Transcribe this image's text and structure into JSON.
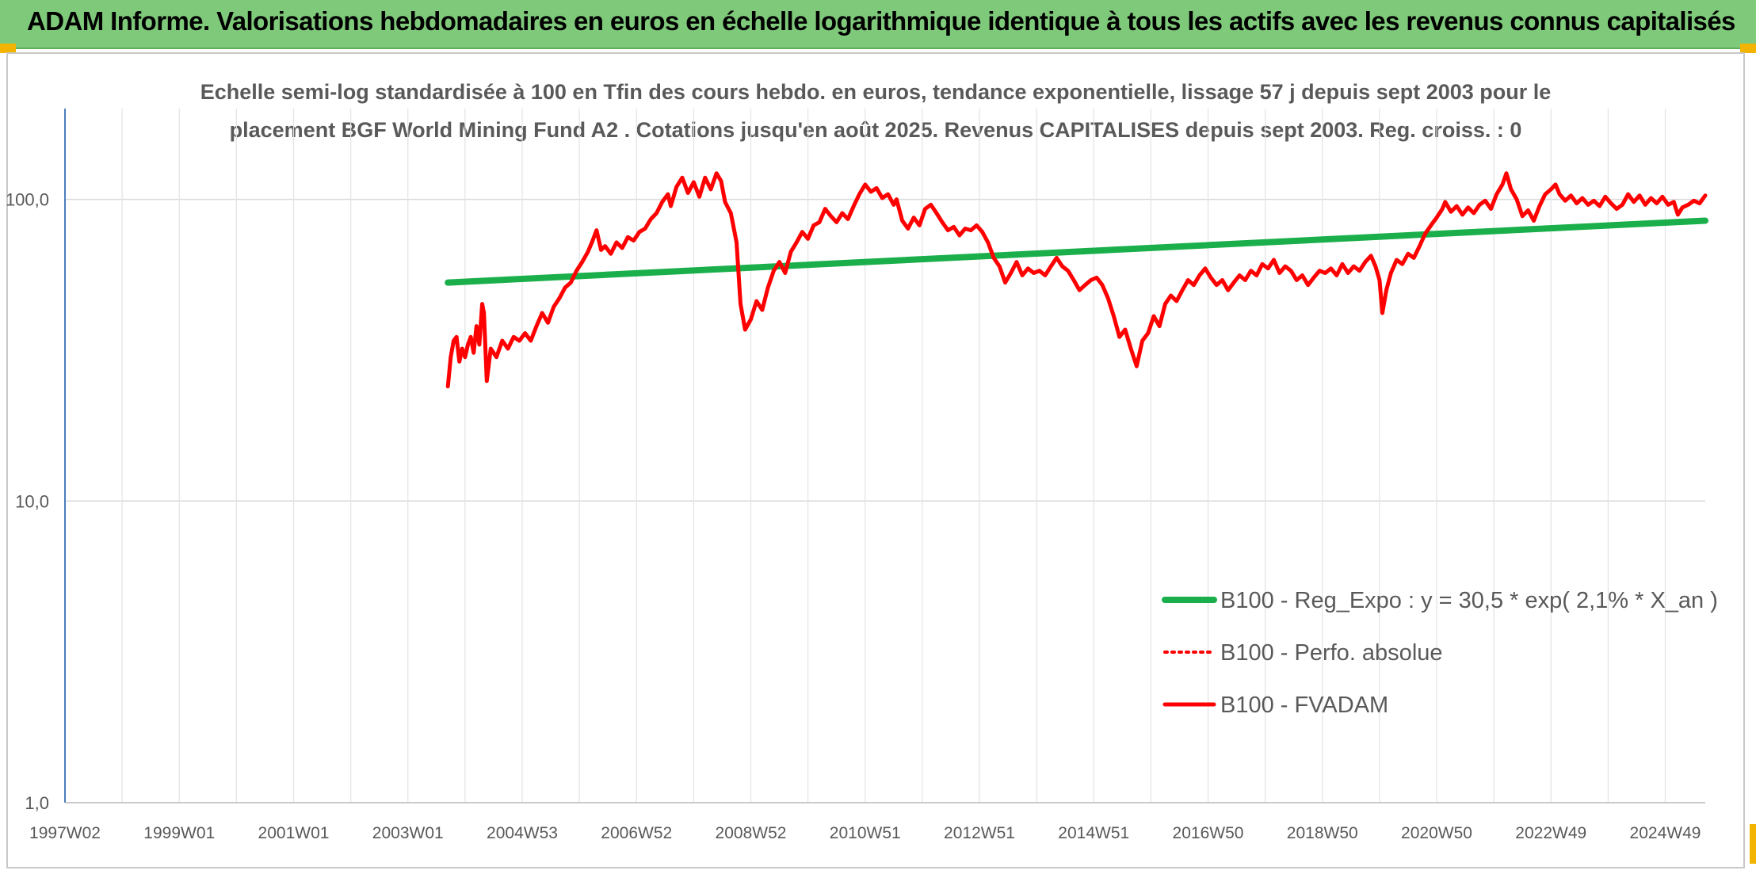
{
  "banner": {
    "title": "ADAM Informe. Valorisations hebdomadaires en euros en échelle logarithmique identique à tous les actifs avec les revenus connus capitalisés"
  },
  "colors": {
    "banner_bg": "#7fc97a",
    "trend_line": "#1aaf4b",
    "perf_line": "#ff0000",
    "adam_line": "#ff0000",
    "corner_accent": "#f2b400"
  },
  "chart_data": {
    "type": "line",
    "title_lines": [
      "Echelle semi-log standardisée à 100 en Tfin des cours hebdo. en euros, tendance exponentielle, lissage 57 j depuis sept 2003 pour le",
      "placement BGF World Mining Fund A2 . Cotations jusqu'en août 2025. Revenus CAPITALISES depuis sept 2003. Reg. croiss. : 0"
    ],
    "y_scale": "log",
    "ylim": [
      1,
      200
    ],
    "yticks": [
      {
        "value": 1,
        "label": "1,0"
      },
      {
        "value": 10,
        "label": "10,0"
      },
      {
        "value": 100,
        "label": "100,0"
      }
    ],
    "xlim": [
      1997.0,
      2025.7
    ],
    "xticks": [
      {
        "value": 1997.0,
        "label": "1997W02"
      },
      {
        "value": 1999.0,
        "label": "1999W01"
      },
      {
        "value": 2001.0,
        "label": "2001W01"
      },
      {
        "value": 2003.0,
        "label": "2003W01"
      },
      {
        "value": 2005.0,
        "label": "2004W53"
      },
      {
        "value": 2007.0,
        "label": "2006W52"
      },
      {
        "value": 2009.0,
        "label": "2008W52"
      },
      {
        "value": 2011.0,
        "label": "2010W51"
      },
      {
        "value": 2013.0,
        "label": "2012W51"
      },
      {
        "value": 2015.0,
        "label": "2014W51"
      },
      {
        "value": 2017.0,
        "label": "2016W50"
      },
      {
        "value": 2019.0,
        "label": "2018W50"
      },
      {
        "value": 2021.0,
        "label": "2020W50"
      },
      {
        "value": 2023.0,
        "label": "2022W49"
      },
      {
        "value": 2025.0,
        "label": "2024W49"
      }
    ],
    "grid": true,
    "legend_position": "bottom-right",
    "series": [
      {
        "name": "B100 - Reg_Expo : y = 30,5 * exp( 2,1% *  X_an )",
        "style": "solid-thick",
        "color": "#1aaf4b",
        "points": [
          [
            2003.7,
            53
          ],
          [
            2025.7,
            85
          ]
        ]
      },
      {
        "name": "B100 - Perfo. absolue",
        "style": "dotted",
        "color": "#ff0000",
        "points": []
      },
      {
        "name": "B100 - FVADAM",
        "style": "solid",
        "color": "#ff0000",
        "points": [
          [
            2003.7,
            24
          ],
          [
            2003.75,
            30
          ],
          [
            2003.8,
            34
          ],
          [
            2003.85,
            35
          ],
          [
            2003.9,
            29
          ],
          [
            2003.95,
            32
          ],
          [
            2004.0,
            30
          ],
          [
            2004.05,
            33
          ],
          [
            2004.1,
            35
          ],
          [
            2004.15,
            31
          ],
          [
            2004.2,
            38
          ],
          [
            2004.25,
            33
          ],
          [
            2004.3,
            45
          ],
          [
            2004.33,
            42
          ],
          [
            2004.38,
            25
          ],
          [
            2004.45,
            32
          ],
          [
            2004.55,
            30
          ],
          [
            2004.65,
            34
          ],
          [
            2004.75,
            32
          ],
          [
            2004.85,
            35
          ],
          [
            2004.95,
            34
          ],
          [
            2005.05,
            36
          ],
          [
            2005.15,
            34
          ],
          [
            2005.25,
            38
          ],
          [
            2005.35,
            42
          ],
          [
            2005.45,
            39
          ],
          [
            2005.55,
            44
          ],
          [
            2005.65,
            47
          ],
          [
            2005.75,
            51
          ],
          [
            2005.85,
            53
          ],
          [
            2005.95,
            58
          ],
          [
            2006.05,
            62
          ],
          [
            2006.15,
            67
          ],
          [
            2006.22,
            72
          ],
          [
            2006.3,
            79
          ],
          [
            2006.38,
            68
          ],
          [
            2006.45,
            70
          ],
          [
            2006.55,
            66
          ],
          [
            2006.65,
            72
          ],
          [
            2006.75,
            69
          ],
          [
            2006.85,
            75
          ],
          [
            2006.95,
            73
          ],
          [
            2007.05,
            78
          ],
          [
            2007.15,
            80
          ],
          [
            2007.25,
            86
          ],
          [
            2007.35,
            90
          ],
          [
            2007.45,
            98
          ],
          [
            2007.55,
            104
          ],
          [
            2007.6,
            95
          ],
          [
            2007.7,
            110
          ],
          [
            2007.8,
            118
          ],
          [
            2007.9,
            105
          ],
          [
            2008.0,
            114
          ],
          [
            2008.1,
            102
          ],
          [
            2008.2,
            118
          ],
          [
            2008.3,
            108
          ],
          [
            2008.4,
            122
          ],
          [
            2008.48,
            115
          ],
          [
            2008.55,
            98
          ],
          [
            2008.65,
            90
          ],
          [
            2008.75,
            72
          ],
          [
            2008.82,
            45
          ],
          [
            2008.9,
            37
          ],
          [
            2009.0,
            40
          ],
          [
            2009.1,
            46
          ],
          [
            2009.2,
            43
          ],
          [
            2009.3,
            51
          ],
          [
            2009.4,
            58
          ],
          [
            2009.5,
            62
          ],
          [
            2009.6,
            57
          ],
          [
            2009.7,
            67
          ],
          [
            2009.8,
            72
          ],
          [
            2009.9,
            78
          ],
          [
            2010.0,
            74
          ],
          [
            2010.1,
            82
          ],
          [
            2010.2,
            84
          ],
          [
            2010.3,
            93
          ],
          [
            2010.4,
            88
          ],
          [
            2010.5,
            84
          ],
          [
            2010.6,
            90
          ],
          [
            2010.7,
            86
          ],
          [
            2010.8,
            95
          ],
          [
            2010.9,
            104
          ],
          [
            2011.0,
            112
          ],
          [
            2011.1,
            106
          ],
          [
            2011.2,
            109
          ],
          [
            2011.3,
            101
          ],
          [
            2011.4,
            104
          ],
          [
            2011.5,
            96
          ],
          [
            2011.55,
            100
          ],
          [
            2011.65,
            85
          ],
          [
            2011.75,
            80
          ],
          [
            2011.85,
            87
          ],
          [
            2011.95,
            82
          ],
          [
            2012.05,
            93
          ],
          [
            2012.15,
            96
          ],
          [
            2012.25,
            90
          ],
          [
            2012.35,
            84
          ],
          [
            2012.45,
            79
          ],
          [
            2012.55,
            81
          ],
          [
            2012.65,
            76
          ],
          [
            2012.75,
            80
          ],
          [
            2012.85,
            79
          ],
          [
            2012.95,
            82
          ],
          [
            2013.05,
            78
          ],
          [
            2013.15,
            72
          ],
          [
            2013.25,
            64
          ],
          [
            2013.35,
            60
          ],
          [
            2013.45,
            53
          ],
          [
            2013.55,
            57
          ],
          [
            2013.65,
            62
          ],
          [
            2013.75,
            56
          ],
          [
            2013.85,
            59
          ],
          [
            2013.95,
            57
          ],
          [
            2014.05,
            58
          ],
          [
            2014.15,
            56
          ],
          [
            2014.25,
            60
          ],
          [
            2014.35,
            64
          ],
          [
            2014.45,
            60
          ],
          [
            2014.55,
            58
          ],
          [
            2014.65,
            54
          ],
          [
            2014.75,
            50
          ],
          [
            2014.85,
            52
          ],
          [
            2014.95,
            54
          ],
          [
            2015.05,
            55
          ],
          [
            2015.15,
            52
          ],
          [
            2015.25,
            47
          ],
          [
            2015.35,
            41
          ],
          [
            2015.45,
            35
          ],
          [
            2015.55,
            37
          ],
          [
            2015.65,
            32
          ],
          [
            2015.75,
            28
          ],
          [
            2015.85,
            34
          ],
          [
            2015.95,
            36
          ],
          [
            2016.05,
            41
          ],
          [
            2016.15,
            38
          ],
          [
            2016.25,
            45
          ],
          [
            2016.35,
            48
          ],
          [
            2016.45,
            46
          ],
          [
            2016.55,
            50
          ],
          [
            2016.65,
            54
          ],
          [
            2016.75,
            52
          ],
          [
            2016.85,
            56
          ],
          [
            2016.95,
            59
          ],
          [
            2017.05,
            55
          ],
          [
            2017.15,
            52
          ],
          [
            2017.25,
            54
          ],
          [
            2017.35,
            50
          ],
          [
            2017.45,
            53
          ],
          [
            2017.55,
            56
          ],
          [
            2017.65,
            54
          ],
          [
            2017.75,
            58
          ],
          [
            2017.85,
            56
          ],
          [
            2017.95,
            61
          ],
          [
            2018.05,
            59
          ],
          [
            2018.15,
            63
          ],
          [
            2018.25,
            57
          ],
          [
            2018.35,
            60
          ],
          [
            2018.45,
            58
          ],
          [
            2018.55,
            54
          ],
          [
            2018.65,
            56
          ],
          [
            2018.75,
            52
          ],
          [
            2018.85,
            55
          ],
          [
            2018.95,
            58
          ],
          [
            2019.05,
            57
          ],
          [
            2019.15,
            59
          ],
          [
            2019.25,
            56
          ],
          [
            2019.35,
            61
          ],
          [
            2019.45,
            57
          ],
          [
            2019.55,
            60
          ],
          [
            2019.65,
            58
          ],
          [
            2019.75,
            62
          ],
          [
            2019.85,
            65
          ],
          [
            2019.93,
            60
          ],
          [
            2020.0,
            54
          ],
          [
            2020.05,
            42
          ],
          [
            2020.12,
            50
          ],
          [
            2020.2,
            57
          ],
          [
            2020.3,
            63
          ],
          [
            2020.4,
            61
          ],
          [
            2020.5,
            66
          ],
          [
            2020.6,
            64
          ],
          [
            2020.7,
            70
          ],
          [
            2020.8,
            77
          ],
          [
            2020.9,
            82
          ],
          [
            2021.0,
            87
          ],
          [
            2021.1,
            93
          ],
          [
            2021.15,
            98
          ],
          [
            2021.25,
            91
          ],
          [
            2021.35,
            95
          ],
          [
            2021.45,
            89
          ],
          [
            2021.55,
            94
          ],
          [
            2021.65,
            90
          ],
          [
            2021.75,
            96
          ],
          [
            2021.85,
            99
          ],
          [
            2021.95,
            93
          ],
          [
            2022.05,
            104
          ],
          [
            2022.15,
            112
          ],
          [
            2022.22,
            122
          ],
          [
            2022.3,
            108
          ],
          [
            2022.4,
            100
          ],
          [
            2022.5,
            88
          ],
          [
            2022.6,
            92
          ],
          [
            2022.7,
            85
          ],
          [
            2022.8,
            95
          ],
          [
            2022.9,
            104
          ],
          [
            2023.0,
            108
          ],
          [
            2023.08,
            112
          ],
          [
            2023.15,
            104
          ],
          [
            2023.25,
            99
          ],
          [
            2023.35,
            103
          ],
          [
            2023.45,
            97
          ],
          [
            2023.55,
            101
          ],
          [
            2023.65,
            96
          ],
          [
            2023.75,
            99
          ],
          [
            2023.85,
            95
          ],
          [
            2023.95,
            102
          ],
          [
            2024.05,
            97
          ],
          [
            2024.15,
            93
          ],
          [
            2024.25,
            96
          ],
          [
            2024.35,
            104
          ],
          [
            2024.45,
            98
          ],
          [
            2024.55,
            103
          ],
          [
            2024.65,
            96
          ],
          [
            2024.75,
            101
          ],
          [
            2024.85,
            97
          ],
          [
            2024.95,
            102
          ],
          [
            2025.05,
            96
          ],
          [
            2025.15,
            98
          ],
          [
            2025.22,
            89
          ],
          [
            2025.3,
            94
          ],
          [
            2025.4,
            96
          ],
          [
            2025.5,
            99
          ],
          [
            2025.6,
            97
          ],
          [
            2025.7,
            103
          ]
        ]
      }
    ]
  }
}
